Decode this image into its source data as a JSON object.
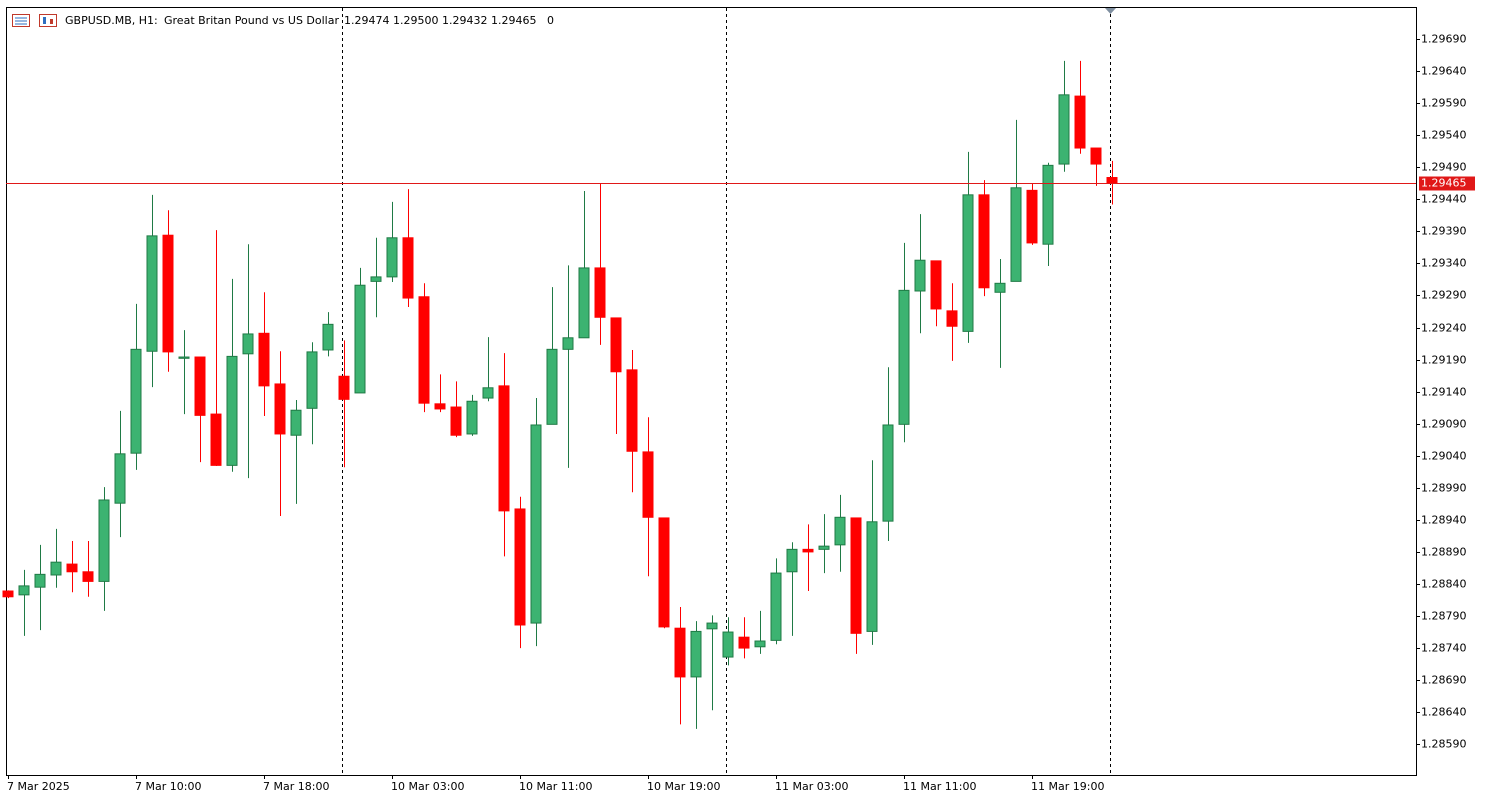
{
  "header": {
    "symbol": "GBPUSD.MB, H1:",
    "description": "Great Britan Pound vs US Dollar",
    "ohlc": [
      "1.29474",
      "1.29500",
      "1.29432",
      "1.29465"
    ],
    "spread": "0"
  },
  "chart_data": {
    "type": "candlestick",
    "categories": [
      "7 Mar 2025",
      null,
      null,
      null,
      null,
      null,
      null,
      null,
      "7 Mar 10:00",
      null,
      null,
      null,
      null,
      null,
      null,
      null,
      "7 Mar 18:00",
      null,
      null,
      null,
      null,
      null,
      null,
      null,
      "10 Mar 03:00",
      null,
      null,
      null,
      null,
      null,
      null,
      null,
      "10 Mar 11:00",
      null,
      null,
      null,
      null,
      null,
      null,
      null,
      "10 Mar 19:00",
      null,
      null,
      null,
      null,
      null,
      null,
      null,
      "11 Mar 03:00",
      null,
      null,
      null,
      null,
      null,
      null,
      null,
      "11 Mar 11:00",
      null,
      null,
      null,
      null,
      null,
      null,
      null,
      "11 Mar 19:00",
      null,
      null,
      null,
      null,
      null
    ],
    "open": [
      1.28829,
      1.28823,
      1.28835,
      1.28854,
      1.28871,
      1.28859,
      1.28844,
      1.28966,
      1.29044,
      1.29203,
      1.29384,
      1.29192,
      1.29194,
      1.29105,
      1.29025,
      1.29199,
      1.29231,
      1.29152,
      1.29072,
      1.29114,
      1.29205,
      1.29164,
      1.29138,
      1.29312,
      1.29319,
      1.2938,
      1.29288,
      1.29121,
      1.29116,
      1.29074,
      1.2913,
      1.29149,
      1.28957,
      1.28779,
      1.29089,
      1.29206,
      1.29224,
      1.29333,
      1.29255,
      1.29174,
      1.29046,
      1.28943,
      1.28771,
      1.28695,
      1.2877,
      1.28726,
      1.28757,
      1.28742,
      1.28752,
      1.28859,
      1.28894,
      1.28894,
      1.28901,
      1.28943,
      1.28766,
      1.28938,
      1.29089,
      1.29297,
      1.29344,
      1.29266,
      1.29234,
      1.29447,
      1.29295,
      1.29312,
      1.29454,
      1.2937,
      1.29495,
      1.29601,
      1.2952,
      1.29474
    ],
    "high": [
      1.2883,
      1.28862,
      1.28901,
      1.28926,
      1.28907,
      1.28907,
      1.28991,
      1.2911,
      1.29277,
      1.29447,
      1.29423,
      1.29236,
      1.29194,
      1.29392,
      1.29316,
      1.2937,
      1.29295,
      1.29203,
      1.29127,
      1.29217,
      1.29264,
      1.2922,
      1.29333,
      1.2938,
      1.29436,
      1.29456,
      1.29309,
      1.29167,
      1.29156,
      1.29135,
      1.29225,
      1.292,
      1.28976,
      1.2913,
      1.29303,
      1.29337,
      1.29453,
      1.29465,
      1.29255,
      1.29205,
      1.291,
      1.28943,
      1.28804,
      1.28782,
      1.28791,
      1.28788,
      1.28788,
      1.28798,
      1.2888,
      1.28905,
      1.28933,
      1.28949,
      1.28979,
      1.28943,
      1.29033,
      1.29178,
      1.29372,
      1.29417,
      1.29344,
      1.29309,
      1.29514,
      1.2947,
      1.29347,
      1.29564,
      1.29464,
      1.29497,
      1.29656,
      1.29656,
      1.2952,
      1.295
    ],
    "low": [
      1.28818,
      1.28759,
      1.28768,
      1.28834,
      1.28827,
      1.2882,
      1.28798,
      1.28913,
      1.29018,
      1.29147,
      1.29171,
      1.29105,
      1.2903,
      1.29024,
      1.29015,
      1.29005,
      1.29102,
      1.28946,
      1.28965,
      1.29058,
      1.29195,
      1.29022,
      1.29138,
      1.29256,
      1.29311,
      1.29272,
      1.29108,
      1.29108,
      1.29069,
      1.29071,
      1.29125,
      1.28883,
      1.2874,
      1.28743,
      1.29089,
      1.29021,
      1.29224,
      1.29213,
      1.29074,
      1.28983,
      1.28852,
      1.28771,
      1.28621,
      1.28614,
      1.28643,
      1.28713,
      1.28724,
      1.28731,
      1.28746,
      1.28759,
      1.28829,
      1.28857,
      1.28859,
      1.28731,
      1.28745,
      1.28907,
      1.29061,
      1.29231,
      1.29242,
      1.29188,
      1.29216,
      1.29289,
      1.29177,
      1.29312,
      1.29369,
      1.29336,
      1.29483,
      1.29511,
      1.29461,
      1.29432
    ],
    "close": [
      1.2882,
      1.28837,
      1.28855,
      1.28874,
      1.28859,
      1.28844,
      1.28971,
      1.29043,
      1.29206,
      1.29383,
      1.29202,
      1.29194,
      1.29103,
      1.29025,
      1.29195,
      1.2923,
      1.29149,
      1.29074,
      1.29111,
      1.29202,
      1.29245,
      1.29128,
      1.29306,
      1.29319,
      1.2938,
      1.29286,
      1.29122,
      1.29113,
      1.29072,
      1.29125,
      1.29146,
      1.28954,
      1.28776,
      1.29088,
      1.29206,
      1.29224,
      1.29333,
      1.29256,
      1.29171,
      1.29047,
      1.28944,
      1.28773,
      1.28695,
      1.28766,
      1.28779,
      1.28765,
      1.2874,
      1.28751,
      1.28857,
      1.28894,
      1.2889,
      1.28899,
      1.28944,
      1.28763,
      1.28937,
      1.29088,
      1.29298,
      1.29345,
      1.29269,
      1.29242,
      1.29447,
      1.29302,
      1.29309,
      1.29458,
      1.29372,
      1.29493,
      1.29603,
      1.2952,
      1.29495,
      1.29465
    ],
    "up_color": "#3cb371",
    "down_color": "#ff0000",
    "current_price": 1.29465,
    "current_price_color": "#e01818",
    "ylim": [
      1.28542,
      1.2974
    ],
    "yticks": [
      {
        "value": 1.2969,
        "label": "1.29690"
      },
      {
        "value": 1.2964,
        "label": "1.29640"
      },
      {
        "value": 1.2959,
        "label": "1.29590"
      },
      {
        "value": 1.2954,
        "label": "1.29540"
      },
      {
        "value": 1.2949,
        "label": "1.29490"
      },
      {
        "value": 1.2944,
        "label": "1.29440"
      },
      {
        "value": 1.2939,
        "label": "1.29390"
      },
      {
        "value": 1.2934,
        "label": "1.29340"
      },
      {
        "value": 1.2929,
        "label": "1.29290"
      },
      {
        "value": 1.2924,
        "label": "1.29240"
      },
      {
        "value": 1.2919,
        "label": "1.29190"
      },
      {
        "value": 1.2914,
        "label": "1.29140"
      },
      {
        "value": 1.2909,
        "label": "1.29090"
      },
      {
        "value": 1.2904,
        "label": "1.29040"
      },
      {
        "value": 1.2899,
        "label": "1.28990"
      },
      {
        "value": 1.2894,
        "label": "1.28940"
      },
      {
        "value": 1.2889,
        "label": "1.28890"
      },
      {
        "value": 1.2884,
        "label": "1.28840"
      },
      {
        "value": 1.2879,
        "label": "1.28790"
      },
      {
        "value": 1.2874,
        "label": "1.28740"
      },
      {
        "value": 1.2869,
        "label": "1.28690"
      },
      {
        "value": 1.2864,
        "label": "1.28640"
      },
      {
        "value": 1.2859,
        "label": "1.28590"
      }
    ],
    "grid": false
  }
}
